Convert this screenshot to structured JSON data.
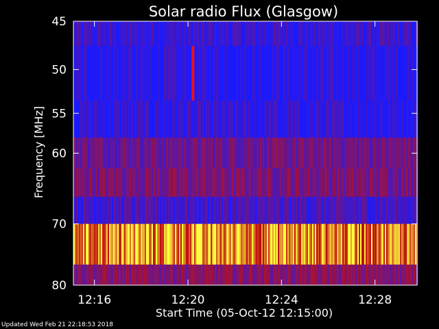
{
  "chart_data": {
    "type": "heatmap",
    "title": "Solar radio Flux (Glasgow)",
    "xlabel": "Start Time (05-Oct-12 12:15:00)",
    "ylabel": "Frequency [MHz]",
    "x_tick_labels": [
      "12:16",
      "12:20",
      "12:24",
      "12:28"
    ],
    "x_tick_minutes": [
      16,
      20,
      24,
      28
    ],
    "xlim_minutes": [
      15.1,
      29.8
    ],
    "y_tick_labels": [
      "45",
      "50",
      "55",
      "60",
      "70",
      "80"
    ],
    "y_tick_values": [
      45,
      50,
      55,
      60,
      70,
      80
    ],
    "ylim": [
      45,
      80
    ],
    "y_scale": "log",
    "bands": [
      {
        "freq_range": [
          45,
          47.5
        ],
        "level": 0.12
      },
      {
        "freq_range": [
          47.5,
          53.5
        ],
        "level": 0.05
      },
      {
        "freq_range": [
          53.5,
          58
        ],
        "level": 0.08
      },
      {
        "freq_range": [
          58,
          62
        ],
        "level": 0.35
      },
      {
        "freq_range": [
          62,
          66
        ],
        "level": 0.4
      },
      {
        "freq_range": [
          66,
          70
        ],
        "level": 0.18
      },
      {
        "freq_range": [
          70,
          76.5
        ],
        "level": 0.85
      },
      {
        "freq_range": [
          76.5,
          80
        ],
        "level": 0.45
      }
    ],
    "burst": {
      "time_minutes": 20.2,
      "freq_range": [
        47.5,
        53.5
      ],
      "level": 1.0
    },
    "colors": {
      "low": "#1a1aff",
      "mid": "#c01010",
      "high": "#ffff40"
    },
    "grid": false
  },
  "footer": "Updated Wed Feb 21 22:18:53 2018"
}
